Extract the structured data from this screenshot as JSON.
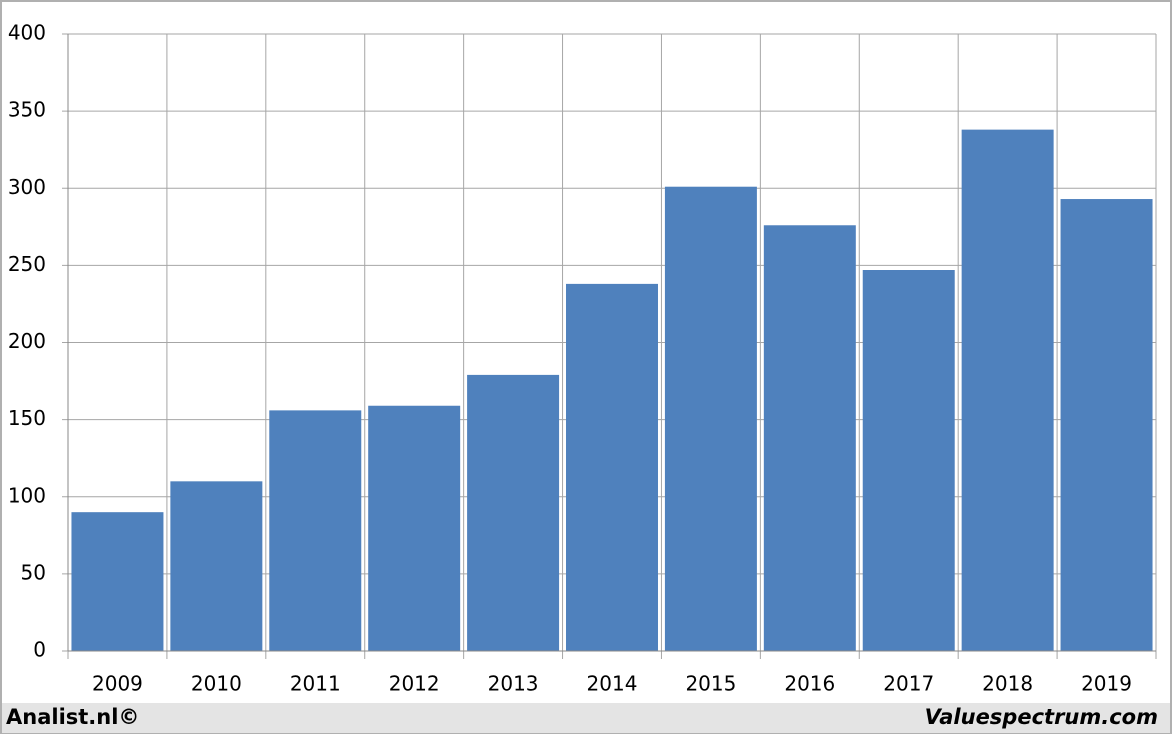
{
  "chart_data": {
    "type": "bar",
    "categories": [
      "2009",
      "2010",
      "2011",
      "2012",
      "2013",
      "2014",
      "2015",
      "2016",
      "2017",
      "2018",
      "2019"
    ],
    "values": [
      90,
      110,
      156,
      159,
      179,
      238,
      301,
      276,
      247,
      338,
      293
    ],
    "color": "#4f81bd",
    "ylim": [
      0,
      400
    ],
    "yticks": [
      0,
      50,
      100,
      150,
      200,
      250,
      300,
      350,
      400
    ],
    "grid": true,
    "footer_left": "Analist.nl©",
    "footer_right": "Valuespectrum.com"
  }
}
